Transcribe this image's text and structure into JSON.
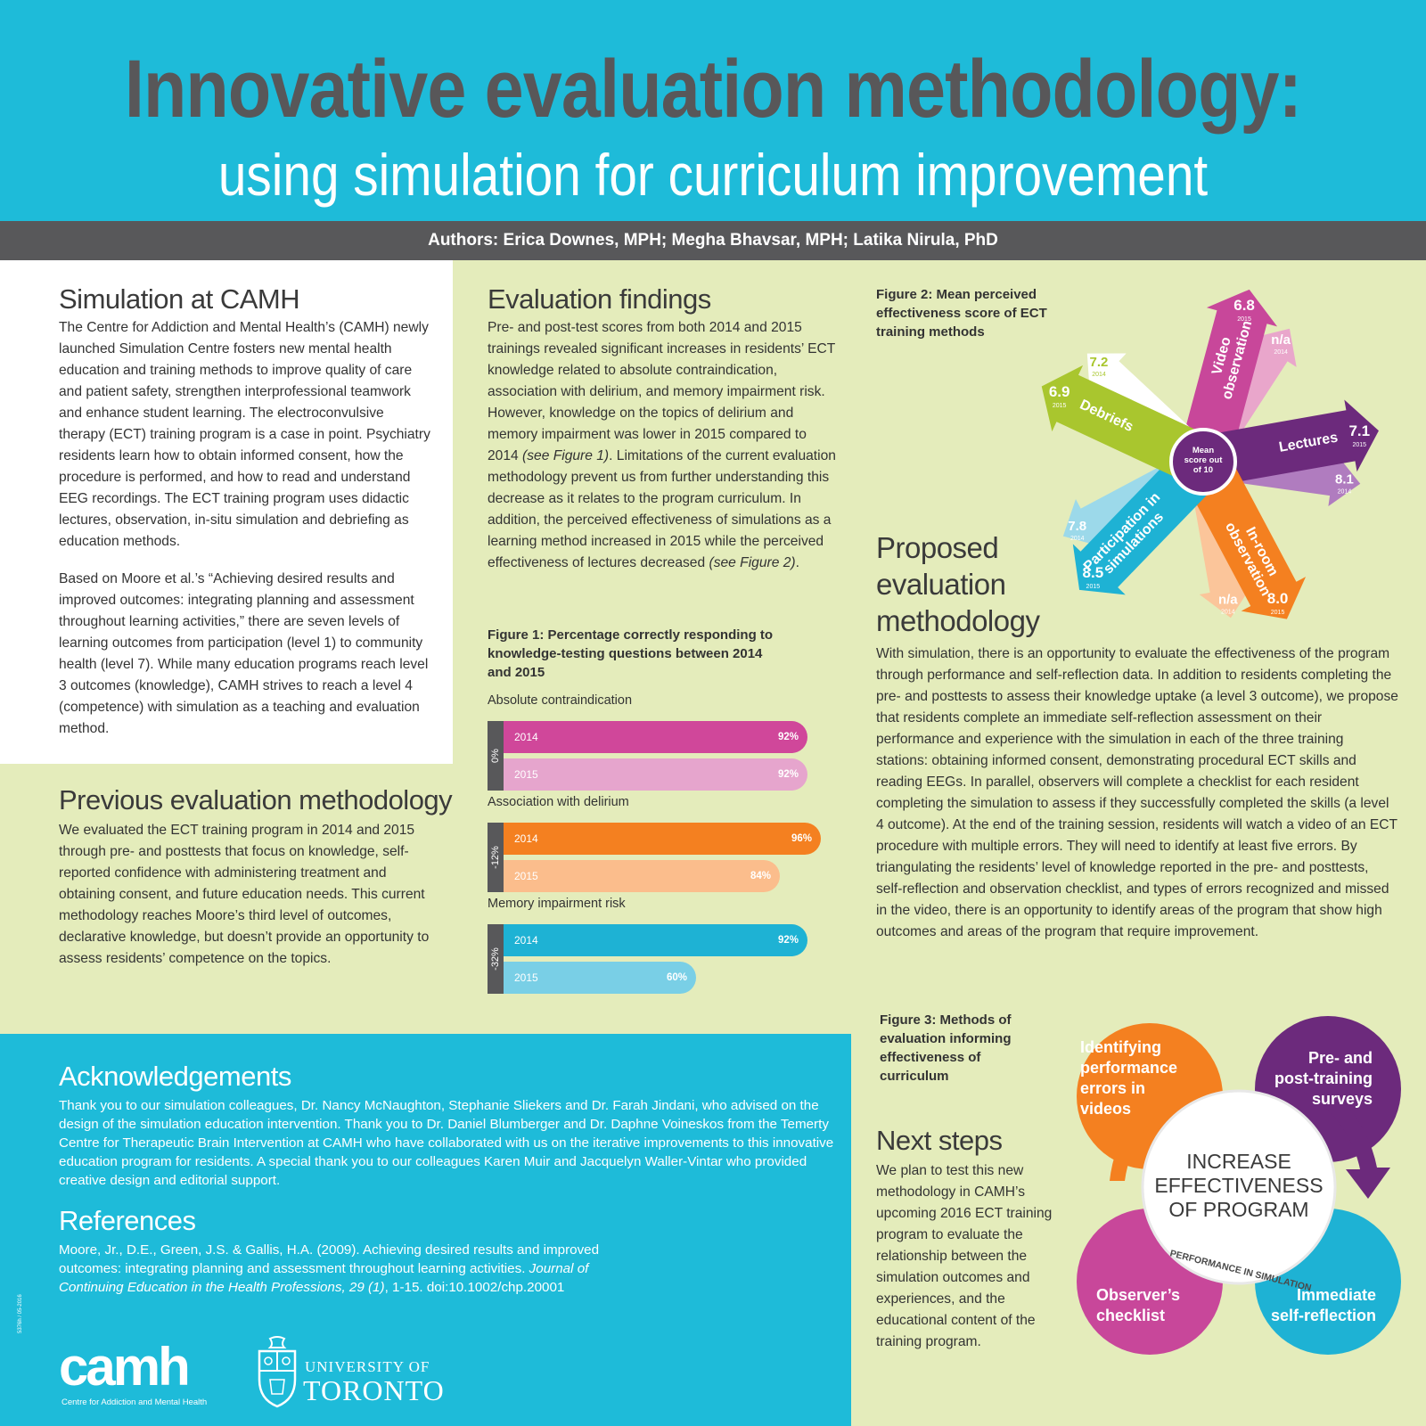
{
  "header": {
    "title": "Innovative evaluation methodology:",
    "subtitle": "using simulation for curriculum improvement",
    "authors": "Authors: Erica Downes, MPH; Megha Bhavsar, MPH; Latika Nirula, PhD"
  },
  "simulation": {
    "heading": "Simulation at CAMH",
    "p1": "The Centre for Addiction and Mental Health’s (CAMH) newly launched Simulation Centre fosters new mental health education and training methods to improve quality of care and patient safety, strengthen interprofessional teamwork and enhance student learning. The electroconvulsive therapy (ECT) training program is a case in point. Psychiatry residents learn how to obtain informed consent, how the procedure is performed, and how to read and understand EEG recordings. The ECT training program uses didactic lectures, observation, in-situ simulation and debriefing as education methods.",
    "p2": "Based on Moore et al.’s “Achieving desired results and improved outcomes: integrating planning and assessment throughout learning activities,” there are seven levels of learning outcomes from participation (level 1) to community health (level 7). While many education programs reach level 3 outcomes (knowledge), CAMH strives to reach a level 4 (competence) with simulation as a teaching and evaluation method."
  },
  "previous": {
    "heading": "Previous evaluation methodology",
    "p1": "We evaluated the ECT training program in 2014 and 2015 through pre- and posttests that focus on knowledge, self-reported confidence with administering treatment and obtaining consent, and future education needs. This current methodology reaches Moore’s third level of outcomes, declarative knowledge, but doesn’t provide an opportunity to assess residents’ competence on the topics."
  },
  "findings": {
    "heading": "Evaluation findings",
    "p1a": "Pre- and post-test scores from both 2014 and 2015 trainings revealed significant increases in residents’ ECT knowledge related to absolute contraindication, association with delirium, and memory impairment risk. However, knowledge on the topics of delirium and memory impairment was lower in 2015 compared to 2014 ",
    "p1b": "(see Figure 1)",
    "p1c": ". Limitations of the current evaluation methodology prevent us from further understanding this decrease as it relates to the program curriculum. In addition, the perceived effectiveness of simulations as a learning method increased in 2015 while the perceived effectiveness of lectures decreased ",
    "p1d": "(see Figure 2)",
    "p1e": "."
  },
  "figure1": {
    "caption": "Figure 1: Percentage correctly responding to knowledge-testing questions between 2014 and 2015"
  },
  "chart_data": {
    "type": "bar",
    "title": "Figure 1: Percentage correctly responding to knowledge-testing questions between 2014 and 2015",
    "groups": [
      {
        "name": "Absolute contraindication",
        "change": "0%",
        "bars": [
          {
            "year": "2014",
            "value": 92,
            "label": "92%",
            "color": "#d0479a"
          },
          {
            "year": "2015",
            "value": 92,
            "label": "92%",
            "color": "#e6a5cd"
          }
        ]
      },
      {
        "name": "Association with delirium",
        "change": "-12%",
        "bars": [
          {
            "year": "2014",
            "value": 96,
            "label": "96%",
            "color": "#f48020"
          },
          {
            "year": "2015",
            "value": 84,
            "label": "84%",
            "color": "#fbbd8c"
          }
        ]
      },
      {
        "name": "Memory impairment risk",
        "change": "-32%",
        "bars": [
          {
            "year": "2014",
            "value": 92,
            "label": "92%",
            "color": "#1eb2d4"
          },
          {
            "year": "2015",
            "value": 60,
            "label": "60%",
            "color": "#79cfe6"
          }
        ]
      }
    ]
  },
  "figure2": {
    "caption": "Figure 2: Mean perceived effectiveness score of ECT training methods",
    "center": [
      "Mean",
      "score out",
      "of 10"
    ],
    "methods": [
      {
        "name": [
          "Video",
          "observation"
        ],
        "v2015": "6.8",
        "y2015": "2015",
        "v2014": "n/a",
        "y2014": "2014"
      },
      {
        "name": [
          "Lectures"
        ],
        "v2015": "7.1",
        "y2015": "2015",
        "v2014": "8.1",
        "y2014": "2014"
      },
      {
        "name": [
          "In-room",
          "observation"
        ],
        "v2015": "8.0",
        "y2015": "2015",
        "v2014": "n/a",
        "y2014": "2014"
      },
      {
        "name": [
          "Participation in",
          "simulations"
        ],
        "v2015": "8.5",
        "y2015": "2015",
        "v2014": "7.8",
        "y2014": "2014"
      },
      {
        "name": [
          "Debriefs"
        ],
        "v2015": "6.9",
        "y2015": "2015",
        "v2014": "7.2",
        "y2014": "2014"
      }
    ]
  },
  "proposed": {
    "heading": "Proposed evaluation methodology",
    "p1": "With simulation, there is an opportunity to evaluate the effectiveness of the program through performance and self-reflection data. In addition to residents completing the pre- and posttests to assess their knowledge uptake (a level 3 outcome), we propose that residents complete an immediate self-reflection assessment on their performance and experience with the simulation in each of the three training stations: obtaining informed consent, demonstrating procedural ECT skills and reading EEGs. In parallel, observers will complete a checklist for each resident completing the simulation to assess if they successfully completed the skills (a level 4 outcome). At the end of the training session, residents will watch a video of an ECT procedure with multiple errors. They will need to identify at least five errors. By triangulating the residents’ level of knowledge reported in the pre- and posttests, self-reflection and observation checklist, and types of errors recognized and missed in the video, there is an opportunity to identify areas of the program that show high outcomes and areas of the program that require improvement."
  },
  "figure3": {
    "caption": "Figure 3: Methods of evaluation informing effectiveness of curriculum",
    "tl": [
      "Identifying",
      "performance",
      "errors in",
      "videos"
    ],
    "tr": [
      "Pre- and",
      "post-training",
      "surveys"
    ],
    "bl": [
      "Observer’s",
      "checklist"
    ],
    "br": [
      "Immediate",
      "self-reflection"
    ],
    "center": [
      "INCREASE",
      "EFFECTIVENESS",
      "OF PROGRAM"
    ],
    "arc": "PERFORMANCE IN SIMULATION"
  },
  "next": {
    "heading": "Next steps",
    "p1": "We plan to test this new methodology in CAMH’s upcoming 2016 ECT training program to evaluate the relationship between the simulation outcomes and experiences, and the educational content of the training program."
  },
  "ack": {
    "heading": "Acknowledgements",
    "p1": "Thank you to our simulation colleagues, Dr. Nancy McNaughton, Stephanie Sliekers and Dr. Farah Jindani, who advised on the design of the simulation education intervention. Thank you to Dr. Daniel Blumberger and Dr. Daphne Voineskos from the Temerty Centre for Therapeutic Brain Intervention at CAMH who have collaborated with us on the iterative improvements to this innovative education program for residents.  A special thank you to our colleagues Karen Muir and Jacquelyn Waller-Vintar who provided creative design and editorial support."
  },
  "refs": {
    "heading": "References",
    "r1a": "Moore, Jr., D.E., Green, J.S. & Gallis, H.A. (2009). Achieving desired results and improved outcomes: integrating planning and assessment throughout learning activities. ",
    "r1b": "Journal of Continuing Education in the Health Professions, 29 (1)",
    "r1c": ", 1-15. doi:10.1002/chp.20001"
  },
  "logos": {
    "camh": "camh",
    "camh_sub": "Centre for Addiction and Mental Health",
    "uoft1": "UNIVERSITY OF",
    "uoft2": "TORONTO",
    "code": "5376h / 05-2016"
  },
  "colors": {
    "blue": "#1ebbd9",
    "green_bg": "#e4ecbb",
    "dark": "#58585a",
    "magenta": "#d0479a",
    "purple": "#6c2a7c",
    "orange": "#f48020",
    "lime": "#a9c62e",
    "teal": "#1eb2d4"
  }
}
